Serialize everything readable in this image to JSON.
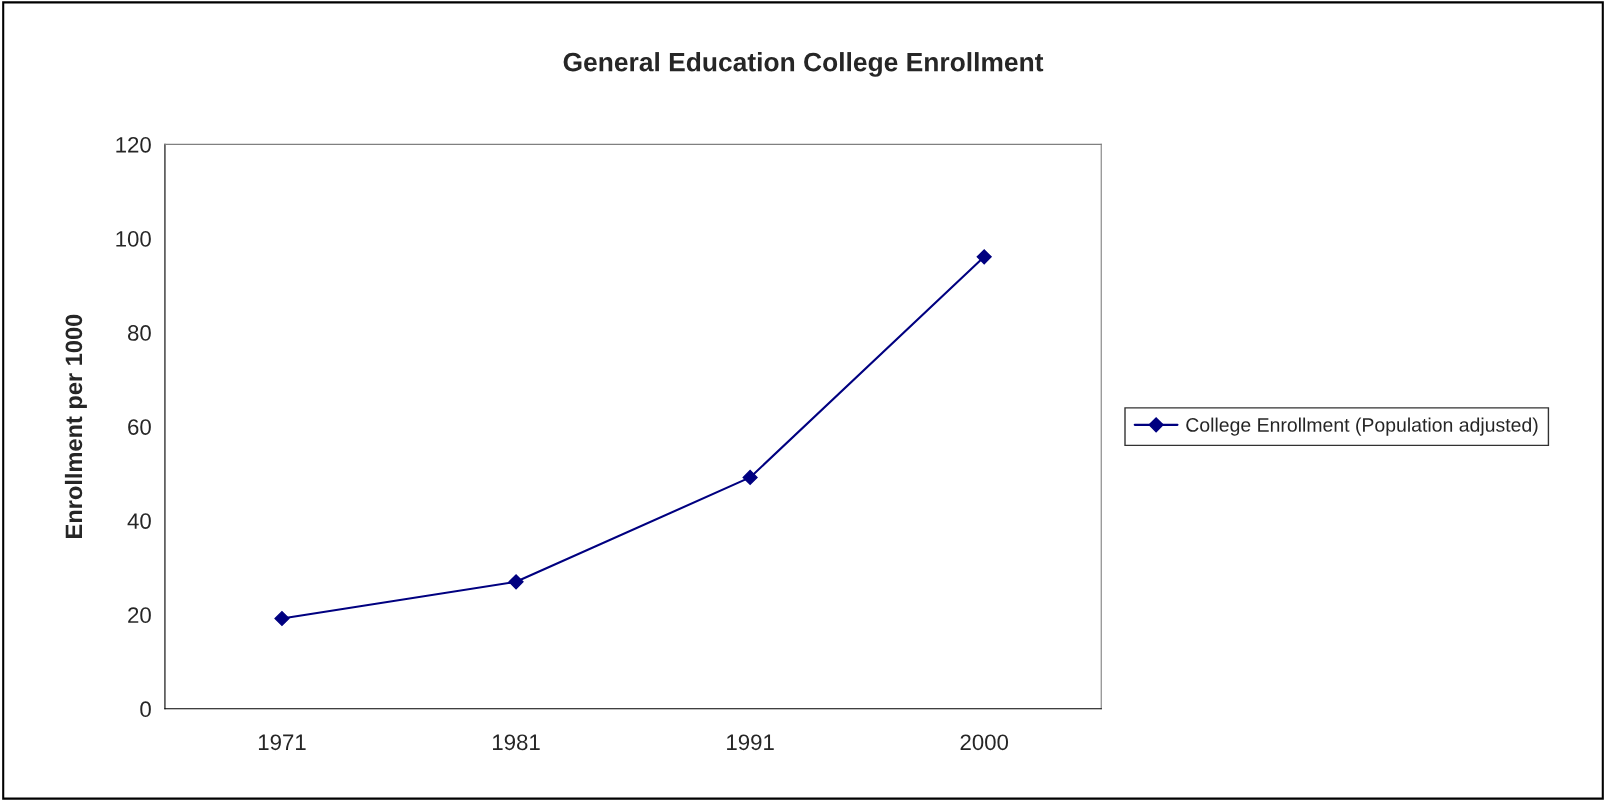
{
  "chart_data": {
    "type": "line",
    "title": "General Education College Enrollment",
    "ylabel": "Enrollment per 1000",
    "categories": [
      "1971",
      "1981",
      "1991",
      "2000"
    ],
    "series": [
      {
        "name": "College Enrollment (Population adjusted)",
        "color": "#000080",
        "values": [
          19.2,
          27.0,
          49.2,
          96.1
        ]
      }
    ],
    "ylim": [
      0,
      120
    ],
    "yticks": [
      0,
      20,
      40,
      60,
      80,
      100,
      120
    ],
    "grid": false,
    "legend": "right",
    "marker": "diamond",
    "line_style": "solid"
  }
}
